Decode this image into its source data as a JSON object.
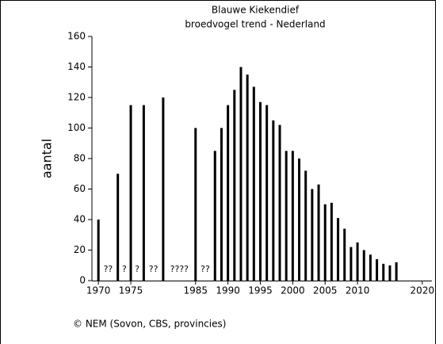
{
  "chart_data": {
    "type": "bar",
    "title": "Blauwe Kiekendief",
    "subtitle": "broedvogel trend - Nederland",
    "y_label": "aantal",
    "footer": "© NEM (Sovon, CBS, provincies)",
    "x": [
      1970,
      1973,
      1975,
      1977,
      1980,
      1985,
      1988,
      1989,
      1990,
      1991,
      1992,
      1993,
      1994,
      1995,
      1996,
      1997,
      1998,
      1999,
      2000,
      2001,
      2002,
      2003,
      2004,
      2005,
      2006,
      2007,
      2008,
      2009,
      2010,
      2011,
      2012,
      2013,
      2014,
      2015,
      2016
    ],
    "values": [
      40,
      70,
      115,
      115,
      120,
      100,
      85,
      100,
      115,
      125,
      140,
      135,
      127,
      117,
      115,
      105,
      102,
      85,
      85,
      80,
      72,
      60,
      63,
      50,
      51,
      41,
      34,
      22,
      25,
      20,
      17,
      14,
      11,
      10,
      12
    ],
    "color": "#000000",
    "annotations": [
      {
        "x": 1971.5,
        "label": "??"
      },
      {
        "x": 1974,
        "label": "?"
      },
      {
        "x": 1976,
        "label": "?"
      },
      {
        "x": 1978.5,
        "label": "??"
      },
      {
        "x": 1982.5,
        "label": "????"
      },
      {
        "x": 1986.5,
        "label": "??"
      }
    ],
    "xlim": [
      1969,
      2021
    ],
    "xticks": [
      1970,
      1975,
      1985,
      1990,
      1995,
      2000,
      2005,
      2010,
      2020
    ],
    "ylim": [
      0,
      160
    ],
    "yticks": [
      0,
      20,
      40,
      60,
      80,
      100,
      120,
      140,
      160
    ]
  }
}
